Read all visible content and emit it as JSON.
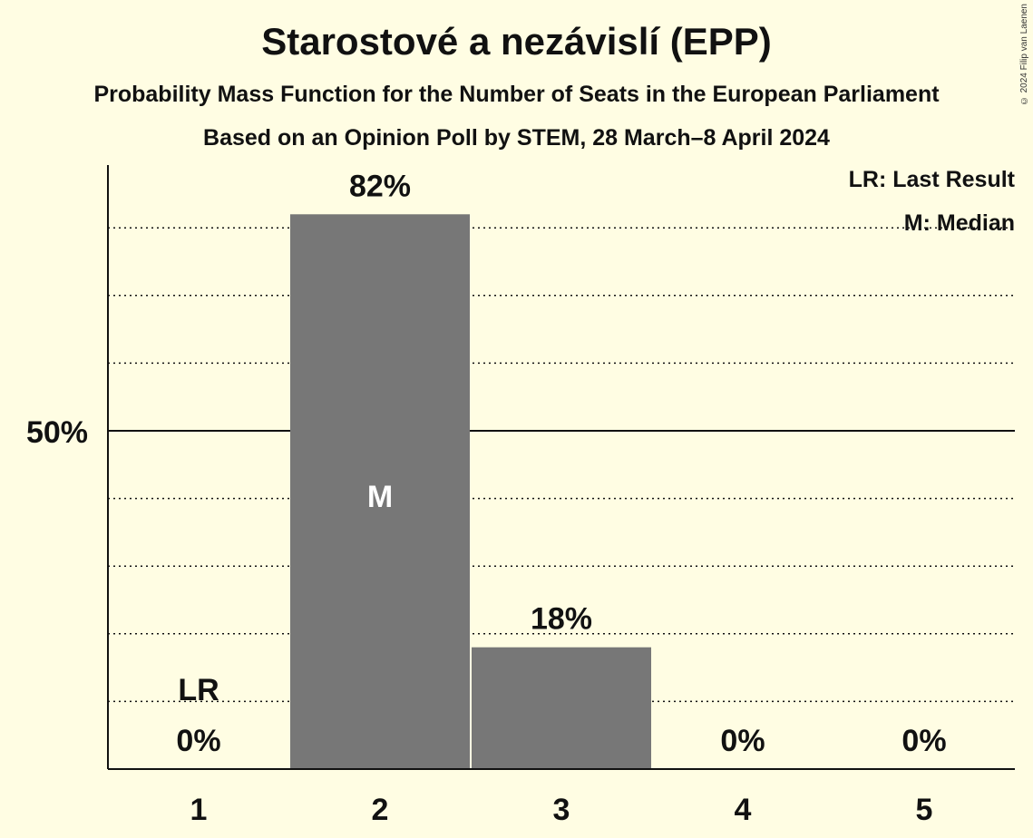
{
  "title": "Starostové a nezávislí (EPP)",
  "subtitle": "Probability Mass Function for the Number of Seats in the European Parliament",
  "subtitle2": "Based on an Opinion Poll by STEM, 28 March–8 April 2024",
  "credit": "© 2024 Filip van Laenen",
  "legend": {
    "last_result": "LR: Last Result",
    "median": "M: Median"
  },
  "colors": {
    "background": "#fffde3",
    "bar": "#777777",
    "text": "#111111"
  },
  "chart_data": {
    "type": "bar",
    "categories": [
      "1",
      "2",
      "3",
      "4",
      "5"
    ],
    "values": [
      0,
      82,
      18,
      0,
      0
    ],
    "value_labels": [
      "0%",
      "82%",
      "18%",
      "0%",
      "0%"
    ],
    "ylim": [
      0,
      90
    ],
    "yticks": [
      {
        "value": 50,
        "label": "50%"
      }
    ],
    "gridlines": [
      10,
      20,
      30,
      40,
      60,
      70,
      80
    ],
    "median_category": "2",
    "median_label": "M",
    "last_result_category": "1",
    "last_result_label": "LR"
  }
}
